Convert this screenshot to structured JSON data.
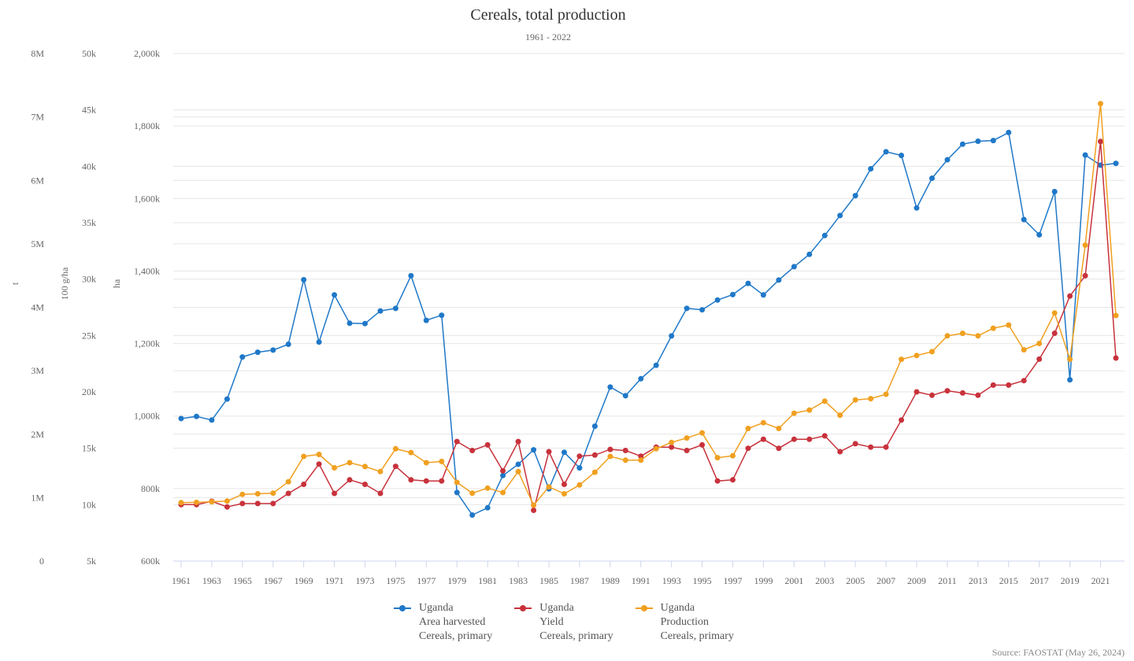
{
  "title": "Cereals, total production",
  "subtitle": "1961 - 2022",
  "source": "Source: FAOSTAT (May 26, 2024)",
  "chart_data": {
    "type": "line",
    "x": [
      1961,
      1962,
      1963,
      1964,
      1965,
      1966,
      1967,
      1968,
      1969,
      1970,
      1971,
      1972,
      1973,
      1974,
      1975,
      1976,
      1977,
      1978,
      1979,
      1980,
      1981,
      1982,
      1983,
      1984,
      1985,
      1986,
      1987,
      1988,
      1989,
      1990,
      1991,
      1992,
      1993,
      1994,
      1995,
      1996,
      1997,
      1998,
      1999,
      2000,
      2001,
      2002,
      2003,
      2004,
      2005,
      2006,
      2007,
      2008,
      2009,
      2010,
      2011,
      2012,
      2013,
      2014,
      2015,
      2016,
      2017,
      2018,
      2019,
      2020,
      2021,
      2022
    ],
    "xlim": [
      1961,
      2022
    ],
    "x_tick_labels": [
      "1961",
      "1963",
      "1965",
      "1967",
      "1969",
      "1971",
      "1973",
      "1975",
      "1977",
      "1979",
      "1981",
      "1983",
      "1985",
      "1987",
      "1989",
      "1991",
      "1993",
      "1995",
      "1997",
      "1999",
      "2001",
      "2003",
      "2005",
      "2007",
      "2009",
      "2011",
      "2013",
      "2015",
      "2017",
      "2019",
      "2021"
    ],
    "axes": [
      {
        "id": "ha",
        "title": "ha",
        "ylim": [
          600000,
          2000000
        ],
        "tick_labels": [
          "600k",
          "800k",
          "1,000k",
          "1,200k",
          "1,400k",
          "1,600k",
          "1,800k",
          "2,000k"
        ]
      },
      {
        "id": "yield",
        "title": "100 g/ha",
        "ylim": [
          5000,
          50000
        ],
        "tick_labels": [
          "5k",
          "10k",
          "15k",
          "20k",
          "25k",
          "30k",
          "35k",
          "40k",
          "45k",
          "50k"
        ]
      },
      {
        "id": "t",
        "title": "t",
        "ylim": [
          0,
          8000000
        ],
        "tick_labels": [
          "0",
          "1M",
          "2M",
          "3M",
          "4M",
          "5M",
          "6M",
          "7M",
          "8M"
        ]
      }
    ],
    "grid": true,
    "legend_position": "bottom-center",
    "series": [
      {
        "name": "Area harvested",
        "legend_lines": [
          "Uganda",
          "Area harvested",
          "Cereals, primary"
        ],
        "axis": "ha",
        "color": "#1f78c8",
        "values": [
          993000,
          999000,
          989000,
          1047000,
          1163000,
          1176000,
          1182000,
          1198000,
          1376000,
          1204000,
          1334000,
          1256000,
          1255000,
          1290000,
          1297000,
          1387000,
          1264000,
          1278000,
          789000,
          727000,
          747000,
          836000,
          867000,
          907000,
          799000,
          900000,
          857000,
          972000,
          1080000,
          1056000,
          1103000,
          1140000,
          1221000,
          1297000,
          1293000,
          1320000,
          1335000,
          1366000,
          1334000,
          1375000,
          1412000,
          1446000,
          1498000,
          1553000,
          1608000,
          1682000,
          1729000,
          1719000,
          1574000,
          1656000,
          1707000,
          1750000,
          1758000,
          1760000,
          1782000,
          1542000,
          1500000,
          1619000,
          1100000,
          1720000,
          1692000,
          1697000
        ]
      },
      {
        "name": "Yield",
        "legend_lines": [
          "Uganda",
          "Yield",
          "Cereals, primary"
        ],
        "axis": "yield",
        "color": "#c8323c",
        "values": [
          10000,
          10000,
          10300,
          9800,
          10100,
          10100,
          10100,
          11000,
          11800,
          13600,
          11000,
          12200,
          11800,
          11000,
          13400,
          12200,
          12100,
          12100,
          15600,
          14800,
          15300,
          13000,
          15600,
          9500,
          14700,
          11800,
          14300,
          14400,
          14900,
          14800,
          14300,
          15100,
          15100,
          14800,
          15300,
          12100,
          12200,
          15000,
          15800,
          15000,
          15800,
          15800,
          16100,
          14700,
          15400,
          15100,
          15100,
          17500,
          20000,
          19700,
          20100,
          19900,
          19700,
          20600,
          20600,
          21000,
          22900,
          25200,
          28500,
          30300,
          42200,
          23000
        ]
      },
      {
        "name": "Production",
        "legend_lines": [
          "Uganda",
          "Production",
          "Cereals, primary"
        ],
        "axis": "t",
        "color": "#f0a020",
        "values": [
          920000,
          925000,
          935000,
          945000,
          1050000,
          1060000,
          1070000,
          1250000,
          1650000,
          1680000,
          1470000,
          1550000,
          1490000,
          1410000,
          1770000,
          1710000,
          1550000,
          1570000,
          1240000,
          1070000,
          1150000,
          1080000,
          1410000,
          880000,
          1170000,
          1060000,
          1200000,
          1400000,
          1650000,
          1590000,
          1590000,
          1770000,
          1870000,
          1940000,
          2020000,
          1630000,
          1660000,
          2090000,
          2180000,
          2090000,
          2330000,
          2380000,
          2520000,
          2300000,
          2540000,
          2560000,
          2630000,
          3180000,
          3240000,
          3300000,
          3550000,
          3590000,
          3550000,
          3670000,
          3720000,
          3330000,
          3430000,
          3910000,
          3180000,
          4980000,
          7210000,
          3870000
        ]
      }
    ]
  }
}
